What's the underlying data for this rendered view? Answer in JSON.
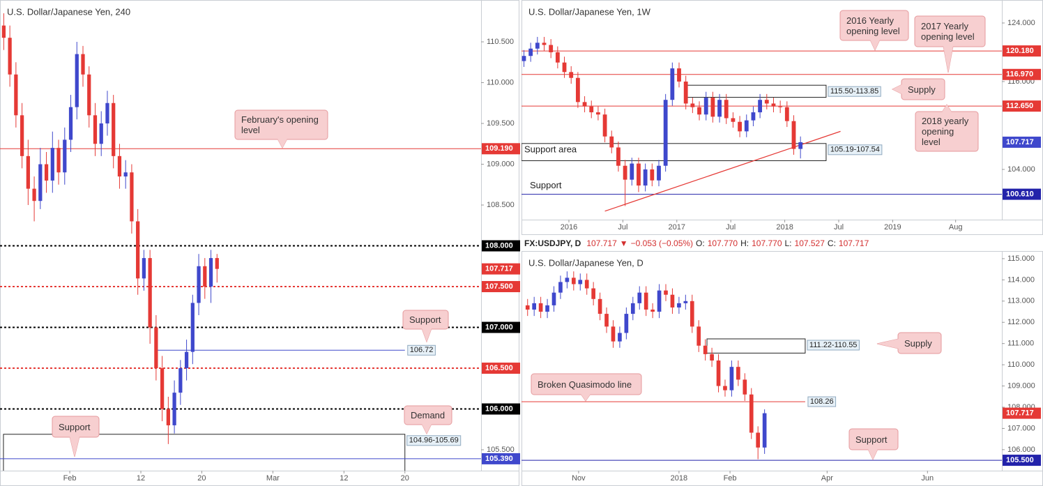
{
  "chart_data": [
    {
      "type": "candlestick",
      "title": "U.S. Dollar/Japanese Yen, 240",
      "x": [
        -6.5,
        -5.9,
        -5.3,
        -4.7,
        -4.1,
        -3.5,
        -2.9,
        -2.3,
        -1.7,
        -1.1,
        -0.5,
        0.1,
        0.7,
        1.3,
        1.9,
        2.5,
        3.1,
        3.7,
        4.3,
        4.9,
        5.5,
        6.1,
        6.7,
        7.3,
        7.9,
        8.5,
        9.1,
        9.7,
        10.3,
        10.9,
        11.5,
        12.1,
        12.7,
        13.3,
        13.9,
        14.5
      ],
      "open": [
        110.7,
        110.55,
        110.1,
        109.6,
        109.1,
        108.7,
        108.55,
        109.0,
        108.8,
        109.2,
        108.9,
        109.3,
        109.7,
        110.35,
        110.1,
        109.6,
        109.25,
        109.5,
        109.75,
        109.1,
        108.85,
        108.9,
        108.3,
        107.6,
        107.85,
        107.0,
        106.5,
        106.0,
        105.8,
        106.2,
        106.5,
        106.7,
        107.3,
        107.75,
        107.5,
        107.85
      ],
      "high": [
        110.85,
        110.7,
        110.25,
        109.75,
        109.3,
        108.85,
        109.2,
        109.15,
        109.4,
        109.3,
        109.45,
        109.85,
        110.5,
        110.45,
        110.2,
        109.75,
        109.65,
        109.9,
        109.85,
        109.25,
        109.05,
        109.0,
        108.45,
        107.95,
        107.95,
        107.15,
        106.65,
        106.15,
        106.35,
        106.6,
        106.85,
        107.4,
        107.9,
        107.85,
        107.95,
        107.9
      ],
      "low": [
        110.4,
        109.95,
        109.45,
        108.95,
        108.5,
        108.3,
        108.45,
        108.65,
        108.65,
        108.75,
        108.75,
        109.15,
        109.55,
        109.95,
        109.45,
        109.1,
        109.1,
        109.35,
        108.95,
        108.7,
        108.7,
        108.15,
        107.4,
        107.45,
        106.8,
        106.35,
        105.85,
        105.57,
        105.7,
        106.05,
        106.35,
        106.55,
        107.15,
        107.35,
        107.3,
        107.55
      ],
      "close": [
        110.55,
        110.1,
        109.6,
        109.1,
        108.7,
        108.55,
        109.0,
        108.8,
        109.2,
        108.9,
        109.3,
        109.7,
        110.35,
        110.1,
        109.6,
        109.25,
        109.5,
        109.75,
        109.1,
        108.85,
        108.9,
        108.3,
        107.6,
        107.85,
        107.0,
        106.5,
        106.0,
        105.8,
        106.2,
        106.5,
        106.7,
        107.3,
        107.75,
        107.5,
        107.85,
        107.717
      ],
      "up_color": "#3f48cc",
      "down_color": "#e53935",
      "xlim": [
        -6.87,
        40.5
      ],
      "xticks": [
        {
          "value": 0,
          "label": "Feb"
        },
        {
          "value": 7,
          "label": "12"
        },
        {
          "value": 13,
          "label": "20"
        },
        {
          "value": 20,
          "label": "Mar"
        },
        {
          "value": 27,
          "label": "12"
        },
        {
          "value": 33,
          "label": "20"
        }
      ],
      "ylim": [
        105.244,
        111.013
      ],
      "yticks": [
        {
          "value": 110.5,
          "label": "110.500"
        },
        {
          "value": 110,
          "label": "110.000"
        },
        {
          "value": 109.5,
          "label": "109.500"
        },
        {
          "value": 109,
          "label": "109.000"
        },
        {
          "value": 108.5,
          "label": "108.500"
        },
        {
          "value": 105.5,
          "label": "105.500"
        }
      ],
      "levels": [
        {
          "value": 109.19,
          "label": "109.190",
          "color": "#e53935",
          "style": "solid",
          "label_at": "axis"
        },
        {
          "value": 108,
          "label": "108.000",
          "color": "#000000",
          "style": "dashed",
          "label_at": "axis"
        },
        {
          "value": 107.717,
          "label": "107.717",
          "color": "#e53935",
          "style": "none",
          "label_at": "axis"
        },
        {
          "value": 107.5,
          "label": "107.500",
          "color": "#e53935",
          "style": "dashed",
          "label_at": "axis"
        },
        {
          "value": 107,
          "label": "107.000",
          "color": "#000000",
          "style": "dashed",
          "label_at": "axis"
        },
        {
          "value": 106.72,
          "label": "106.72",
          "color": "#3f48cc",
          "style": "solid",
          "label_at": "box",
          "x": [
            8.38,
            33
          ]
        },
        {
          "value": 106.5,
          "label": "106.500",
          "color": "#e53935",
          "style": "dashed",
          "label_at": "axis"
        },
        {
          "value": 106,
          "label": "106.000",
          "color": "#000000",
          "style": "dashed",
          "label_at": "axis"
        },
        {
          "value": 105.39,
          "label": "105.390",
          "color": "#3f48cc",
          "style": "solid",
          "label_at": "axis"
        }
      ],
      "zones": [
        {
          "top": 105.69,
          "bottom": 104.96,
          "x": [
            -6.53,
            33
          ],
          "label": "104.96-105.69"
        }
      ],
      "annotations": [
        "February's opening level",
        "Support",
        "Support",
        "Demand"
      ]
    },
    {
      "type": "candlestick",
      "title": "U.S. Dollar/Japanese Yen, 1W",
      "x": [
        -5,
        -4.25,
        -3.5,
        -2.75,
        -2,
        -1.25,
        -0.5,
        0.25,
        1,
        1.75,
        2.5,
        3.25,
        4,
        4.75,
        5.5,
        6.25,
        7,
        7.75,
        8.5,
        9.25,
        10,
        10.75,
        11.5,
        12.25,
        13,
        13.75,
        14.5,
        15.25,
        16,
        16.75,
        17.5,
        18.25,
        19,
        19.75,
        20.5,
        21.25,
        22,
        22.75,
        23.5,
        24.25,
        25,
        25.75
      ],
      "open": [
        118.8,
        119.5,
        120.5,
        121.3,
        121.0,
        120.0,
        118.6,
        117.3,
        116.5,
        113.2,
        112.6,
        111.8,
        111.5,
        108.5,
        107.0,
        104.5,
        102.6,
        104.8,
        101.8,
        104.0,
        102.5,
        104.5,
        113.5,
        117.8,
        116.0,
        113.0,
        112.5,
        111.5,
        113.8,
        111.2,
        113.5,
        111.0,
        110.5,
        109.2,
        110.7,
        111.8,
        113.5,
        113.0,
        112.6,
        112.5,
        110.6,
        106.8
      ],
      "high": [
        120.3,
        121.3,
        122.1,
        122.1,
        121.8,
        120.8,
        119.4,
        118.1,
        117.3,
        114.0,
        113.4,
        112.6,
        112.3,
        109.3,
        107.8,
        105.3,
        105.6,
        105.6,
        104.8,
        104.8,
        105.3,
        114.3,
        118.6,
        118.6,
        116.8,
        113.8,
        113.3,
        114.6,
        114.6,
        114.3,
        114.3,
        111.8,
        111.3,
        111.5,
        112.6,
        114.3,
        114.3,
        113.8,
        113.4,
        113.3,
        111.4,
        108.5
      ],
      "low": [
        118.0,
        118.7,
        119.7,
        120.2,
        119.2,
        117.8,
        116.5,
        115.7,
        112.4,
        111.8,
        111.0,
        110.7,
        107.7,
        106.2,
        103.7,
        99.0,
        101.8,
        100.9,
        101.0,
        101.7,
        101.7,
        103.7,
        112.7,
        115.2,
        112.2,
        111.7,
        110.7,
        110.7,
        110.4,
        110.4,
        110.2,
        109.7,
        108.4,
        108.4,
        109.9,
        111.0,
        112.2,
        111.8,
        111.7,
        109.8,
        106.0,
        105.5
      ],
      "close": [
        119.5,
        120.5,
        121.3,
        121.0,
        120.0,
        118.6,
        117.3,
        116.5,
        113.2,
        112.6,
        111.8,
        111.5,
        108.5,
        107.0,
        104.5,
        102.6,
        104.8,
        101.8,
        104.0,
        102.5,
        104.5,
        113.5,
        117.8,
        116.0,
        113.0,
        112.5,
        111.5,
        113.8,
        111.2,
        113.5,
        111.0,
        110.5,
        109.2,
        110.7,
        111.8,
        113.5,
        113.0,
        112.6,
        112.5,
        110.6,
        106.8,
        107.717
      ],
      "up_color": "#3f48cc",
      "down_color": "#e53935",
      "xlim": [
        -5.27,
        48.14
      ],
      "xticks": [
        {
          "value": 0,
          "label": "2016"
        },
        {
          "value": 6,
          "label": "Jul"
        },
        {
          "value": 12,
          "label": "2017"
        },
        {
          "value": 18,
          "label": "Jul"
        },
        {
          "value": 24,
          "label": "2018"
        },
        {
          "value": 30,
          "label": "Jul"
        },
        {
          "value": 36,
          "label": "2019"
        },
        {
          "value": 43,
          "label": "Aug"
        }
      ],
      "ylim": [
        97.14,
        127.14
      ],
      "yticks": [
        {
          "value": 124,
          "label": "124.000"
        },
        {
          "value": 116,
          "label": "116.000"
        },
        {
          "value": 104,
          "label": "104.000"
        }
      ],
      "levels": [
        {
          "value": 120.18,
          "label": "120.180",
          "color": "#e53935",
          "style": "solid",
          "label_at": "axis"
        },
        {
          "value": 116.97,
          "label": "116.970",
          "color": "#e53935",
          "style": "solid",
          "label_at": "axis"
        },
        {
          "value": 112.65,
          "label": "112.650",
          "color": "#e53935",
          "style": "solid",
          "label_at": "axis"
        },
        {
          "value": 107.717,
          "label": "107.717",
          "color": "#3f48cc",
          "style": "none",
          "label_at": "axis"
        },
        {
          "value": 100.61,
          "label": "100.610",
          "color": "#2222aa",
          "style": "solid",
          "label_at": "axis",
          "name": "Support"
        }
      ],
      "zones": [
        {
          "top": 115.5,
          "bottom": 113.85,
          "x": [
            13.1,
            28.6
          ],
          "label": "115.50-113.85"
        },
        {
          "top": 107.54,
          "bottom": 105.19,
          "x": [
            -5.27,
            28.6
          ],
          "label": "105.19-107.54",
          "name": "Support area"
        }
      ],
      "trendlines": [
        {
          "x": [
            4,
            30.2
          ],
          "y": [
            98.3,
            109.2
          ],
          "color": "#e53935"
        }
      ],
      "annotations": [
        "2016 Yearly opening level",
        "2017 Yearly opening level",
        "Supply",
        "2018 yearly opening level"
      ]
    },
    {
      "type": "candlestick",
      "title": "U.S. Dollar/Japanese Yen, D",
      "x": [
        0,
        4,
        8,
        12,
        16,
        20,
        24,
        28,
        32,
        36,
        40,
        44,
        48,
        52,
        56,
        60,
        64,
        68,
        72,
        76,
        80,
        84,
        88,
        92,
        96,
        100,
        104,
        108,
        112,
        116,
        120,
        124,
        128,
        132,
        136,
        140,
        144
      ],
      "open": [
        112.8,
        112.6,
        112.9,
        112.5,
        112.8,
        113.4,
        113.9,
        114.1,
        113.8,
        114.0,
        113.6,
        113.1,
        112.4,
        111.8,
        111.1,
        111.5,
        112.4,
        112.9,
        113.4,
        112.6,
        112.5,
        113.5,
        113.3,
        112.7,
        112.9,
        113.0,
        111.8,
        110.9,
        110.5,
        110.2,
        109.0,
        108.8,
        109.9,
        109.3,
        108.6,
        106.8,
        106.1
      ],
      "high": [
        113.1,
        113.2,
        113.2,
        113.1,
        113.7,
        114.2,
        114.4,
        114.4,
        114.3,
        114.3,
        113.9,
        113.4,
        112.7,
        112.1,
        111.8,
        112.7,
        113.2,
        113.7,
        113.7,
        112.9,
        113.8,
        113.8,
        113.6,
        113.2,
        113.3,
        113.3,
        112.1,
        111.2,
        110.8,
        110.5,
        109.3,
        110.2,
        110.2,
        109.6,
        108.9,
        107.1,
        107.9
      ],
      "low": [
        112.3,
        112.3,
        112.2,
        112.2,
        112.5,
        113.1,
        113.6,
        113.5,
        113.5,
        113.3,
        112.8,
        112.1,
        111.5,
        110.8,
        110.8,
        111.2,
        112.1,
        112.6,
        112.3,
        112.2,
        112.2,
        113.0,
        112.4,
        112.4,
        112.6,
        111.5,
        110.6,
        110.2,
        109.9,
        108.7,
        108.5,
        108.5,
        109.0,
        108.3,
        106.5,
        105.55,
        105.8
      ],
      "close": [
        112.6,
        112.9,
        112.5,
        112.8,
        113.4,
        113.9,
        114.1,
        113.8,
        114.0,
        113.6,
        113.1,
        112.4,
        111.8,
        111.1,
        111.5,
        112.4,
        112.9,
        113.4,
        112.6,
        112.5,
        113.5,
        113.3,
        112.7,
        112.9,
        113.0,
        111.8,
        110.9,
        110.5,
        110.2,
        109.0,
        108.8,
        109.9,
        109.3,
        108.6,
        106.8,
        106.1,
        107.717
      ],
      "up_color": "#3f48cc",
      "down_color": "#e53935",
      "xlim": [
        -3.7,
        288.2
      ],
      "xticks": [
        {
          "value": 31,
          "label": "Nov"
        },
        {
          "value": 92,
          "label": "2018"
        },
        {
          "value": 123,
          "label": "Feb"
        },
        {
          "value": 182,
          "label": "Apr"
        },
        {
          "value": 243,
          "label": "Jun"
        }
      ],
      "ylim": [
        105.01,
        115.36
      ],
      "yticks": [
        {
          "value": 115,
          "label": "115.000"
        },
        {
          "value": 114,
          "label": "114.000"
        },
        {
          "value": 113,
          "label": "113.000"
        },
        {
          "value": 112,
          "label": "112.000"
        },
        {
          "value": 111,
          "label": "111.000"
        },
        {
          "value": 110,
          "label": "110.000"
        },
        {
          "value": 109,
          "label": "109.000"
        },
        {
          "value": 108,
          "label": "108.000"
        },
        {
          "value": 107,
          "label": "107.000"
        },
        {
          "value": 106,
          "label": "106.000"
        }
      ],
      "levels": [
        {
          "value": 108.26,
          "label": "108.26",
          "color": "#e53935",
          "style": "solid",
          "label_at": "box",
          "x": [
            -3.7,
            168.7
          ]
        },
        {
          "value": 107.717,
          "label": "107.717",
          "color": "#e53935",
          "style": "none",
          "label_at": "axis"
        },
        {
          "value": 105.5,
          "label": "105.500",
          "color": "#2222aa",
          "style": "solid",
          "label_at": "axis"
        }
      ],
      "zones": [
        {
          "top": 111.22,
          "bottom": 110.55,
          "x": [
            109,
            168.7
          ],
          "label": "111.22-110.55"
        }
      ],
      "annotations": [
        "Broken Quasimodo line",
        "Supply",
        "Support"
      ]
    }
  ],
  "header": {
    "symbol": "FX:USDJPY, D",
    "last": "107.717",
    "arrow": "▼",
    "change": "−0.053 (−0.05%)",
    "open_label": "O:",
    "open": "107.770",
    "high_label": "H:",
    "high": "107.770",
    "low_label": "L:",
    "low": "107.527",
    "close_label": "C:",
    "close": "107.717"
  }
}
